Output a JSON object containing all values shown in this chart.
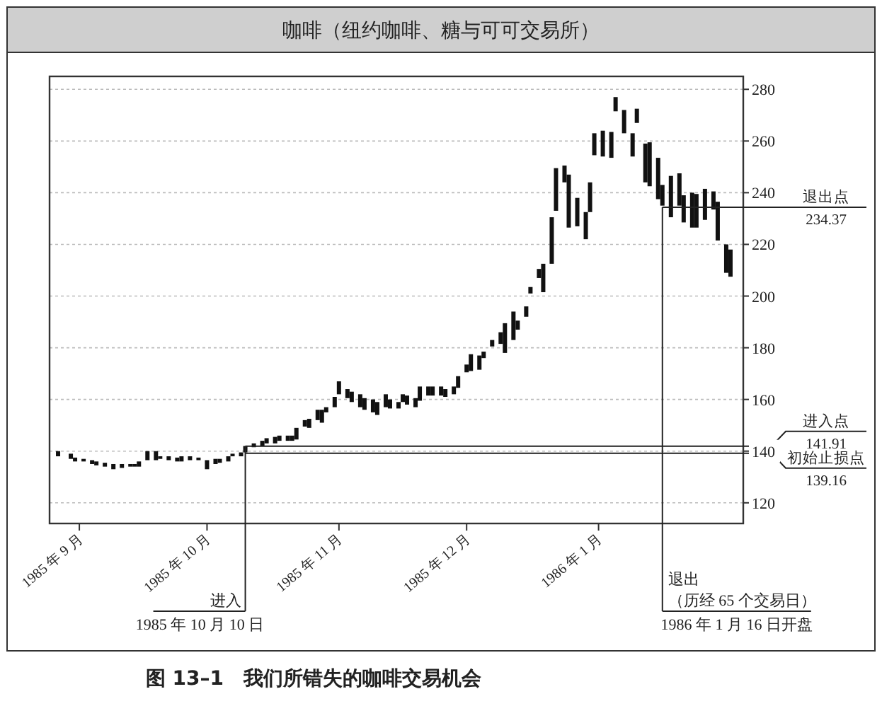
{
  "chart_data": {
    "type": "bar",
    "title": "咖啡（纽约咖啡、糖与可可交易所）",
    "x": [
      "1985-08-27",
      "1985-08-30",
      "1985-08-31",
      "1985-09-02",
      "1985-09-04",
      "1985-09-05",
      "1985-09-07",
      "1985-09-09",
      "1985-09-11",
      "1985-09-13",
      "1985-09-14",
      "1985-09-15",
      "1985-09-17",
      "1985-09-19",
      "1985-09-20",
      "1985-09-22",
      "1985-09-24",
      "1985-09-25",
      "1985-09-27",
      "1985-09-29",
      "1985-10-01",
      "1985-10-03",
      "1985-10-04",
      "1985-10-06",
      "1985-10-07",
      "1985-10-09",
      "1985-10-10",
      "1985-10-12",
      "1985-10-14",
      "1985-10-15",
      "1985-10-17",
      "1985-10-18",
      "1985-10-20",
      "1985-10-21",
      "1985-10-22",
      "1985-10-24",
      "1985-10-25",
      "1985-10-27",
      "1985-10-28",
      "1985-10-29",
      "1985-10-31",
      "1985-11-01",
      "1985-11-03",
      "1985-11-04",
      "1985-11-06",
      "1985-11-07",
      "1985-11-09",
      "1985-11-10",
      "1985-11-12",
      "1985-11-13",
      "1985-11-15",
      "1985-11-16",
      "1985-11-17",
      "1985-11-19",
      "1985-11-20",
      "1985-11-22",
      "1985-11-23",
      "1985-11-25",
      "1985-11-26",
      "1985-11-28",
      "1985-11-29",
      "1985-12-01",
      "1985-12-02",
      "1985-12-04",
      "1985-12-05",
      "1985-12-07",
      "1985-12-09",
      "1985-12-10",
      "1985-12-12",
      "1985-12-13",
      "1985-12-15",
      "1985-12-16",
      "1985-12-18",
      "1985-12-19",
      "1985-12-21",
      "1985-12-22",
      "1985-12-24",
      "1985-12-25",
      "1985-12-27",
      "1985-12-29",
      "1985-12-30",
      "1985-12-31",
      "1986-01-02",
      "1986-01-04",
      "1986-01-05",
      "1986-01-07",
      "1986-01-09",
      "1986-01-10",
      "1986-01-12",
      "1986-01-13",
      "1986-01-15",
      "1986-01-16",
      "1986-01-18",
      "1986-01-20",
      "1986-01-21",
      "1986-01-23",
      "1986-01-24",
      "1986-01-26",
      "1986-01-28",
      "1986-01-29",
      "1986-01-31",
      "1986-02-01"
    ],
    "base": [
      138,
      137,
      136,
      136,
      135,
      134.5,
      134,
      133,
      133.5,
      134,
      134,
      134,
      136.5,
      136.5,
      137,
      136.5,
      136,
      136,
      136.5,
      136.5,
      133,
      135,
      135.5,
      136,
      138,
      138,
      139.5,
      141.5,
      142,
      143,
      143,
      144,
      144,
      144,
      144.5,
      149.5,
      149,
      152,
      151,
      155,
      157,
      162,
      160.5,
      159,
      157,
      156,
      155,
      154,
      157,
      156.5,
      156.5,
      159,
      158,
      157,
      159.5,
      161.5,
      161.5,
      161.5,
      161,
      162,
      164.5,
      170.5,
      171,
      171.5,
      176,
      180.5,
      181.5,
      178,
      183,
      187,
      192,
      201,
      207,
      201.5,
      212.5,
      233,
      244,
      226.5,
      227,
      222,
      232.5,
      254.5,
      254,
      253.5,
      271.5,
      263,
      254,
      267,
      244,
      242.5,
      237.5,
      235,
      230.5,
      235,
      228.5,
      226.5,
      226.5,
      229.5,
      233.5,
      221.5,
      209,
      207.5
    ],
    "values": [
      2,
      2,
      1.5,
      1,
      1.5,
      1.5,
      1.5,
      2,
      1.5,
      1,
      1,
      2,
      3.5,
      3.5,
      1,
      1.5,
      1.5,
      2,
      1.5,
      1,
      3.5,
      2,
      1.5,
      2,
      1,
      1.5,
      2.5,
      1.5,
      2,
      2,
      2.5,
      2,
      2,
      2,
      4.5,
      2.5,
      3.5,
      4,
      5,
      2,
      4,
      5,
      3.5,
      4,
      5,
      4.5,
      5,
      5,
      5,
      3.5,
      2.5,
      3,
      3.5,
      3.5,
      5.5,
      3.5,
      3.5,
      3.5,
      3,
      3,
      4.5,
      3,
      6.5,
      5.5,
      2.5,
      2.5,
      4.5,
      11.5,
      11,
      3.5,
      4,
      2.5,
      3.5,
      11,
      18,
      16.5,
      6.5,
      20.5,
      11,
      10.5,
      11.5,
      8.5,
      10,
      10,
      5.5,
      9,
      9,
      5.5,
      15,
      17,
      16,
      8,
      16,
      12.5,
      10.5,
      13.5,
      13,
      12,
      7,
      15,
      11,
      10.5
    ],
    "color": "#111111",
    "xlim": [
      "1985-08-25",
      "1986-02-04"
    ],
    "xticks": [
      {
        "value": "1985-09-01",
        "label": "1985 年 9 月"
      },
      {
        "value": "1985-10-01",
        "label": "1985 年 10 月"
      },
      {
        "value": "1985-11-01",
        "label": "1985 年 11 月"
      },
      {
        "value": "1985-12-01",
        "label": "1985 年 12 月"
      },
      {
        "value": "1986-01-01",
        "label": "1986 年 1 月"
      }
    ],
    "ylim": [
      112,
      285
    ],
    "yticks": [
      120,
      140,
      160,
      180,
      200,
      220,
      240,
      260,
      280
    ],
    "grid": "y",
    "ref_lines": [
      {
        "axis": "x",
        "value": "1985-10-10",
        "label": "进入"
      },
      {
        "axis": "x",
        "value": "1986-01-16",
        "label": "退出"
      },
      {
        "axis": "y",
        "value": 141.91,
        "label": "进入点"
      },
      {
        "axis": "y",
        "value": 139.16,
        "label": "初始止损点"
      },
      {
        "axis": "y",
        "value": 234.37,
        "label": "退出点"
      }
    ],
    "annotations": [
      "1985 年 10 月 10 日",
      "（历经 65 个交易日）",
      "1986 年 1 月 16 日开盘",
      "141.91",
      "139.16",
      "234.37",
      "图 13–1　我们所错失的咖啡交易机会"
    ]
  }
}
